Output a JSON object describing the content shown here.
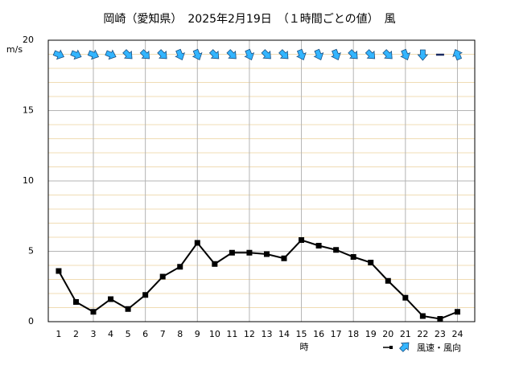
{
  "chart_data": {
    "type": "line",
    "title": "岡崎（愛知県）　2025年2月19日　（１時間ごとの値）　風",
    "y_label": "m/s",
    "x_label": "時",
    "legend": "風速・風向",
    "x": [
      1,
      2,
      3,
      4,
      5,
      6,
      7,
      8,
      9,
      10,
      11,
      12,
      13,
      14,
      15,
      16,
      17,
      18,
      19,
      20,
      21,
      22,
      23,
      24
    ],
    "series": [
      {
        "name": "風速",
        "color": "#000000",
        "values": [
          3.6,
          1.4,
          0.7,
          1.6,
          0.9,
          1.9,
          3.2,
          3.9,
          5.6,
          4.1,
          4.9,
          4.9,
          4.8,
          4.5,
          5.8,
          5.4,
          5.1,
          4.6,
          4.2,
          2.9,
          1.7,
          0.4,
          0.2,
          0.7
        ]
      }
    ],
    "directions": [
      292.5,
      292.5,
      292.5,
      292.5,
      315,
      315,
      315,
      337.5,
      337.5,
      315,
      315,
      337.5,
      315,
      315,
      337.5,
      337.5,
      337.5,
      315,
      315,
      315,
      337.5,
      0,
      null,
      157.5
    ],
    "arrow_color": "#33b5ff",
    "xlim": [
      0.4,
      25
    ],
    "xticks": [
      1,
      2,
      3,
      4,
      5,
      6,
      7,
      8,
      9,
      10,
      11,
      12,
      13,
      14,
      15,
      16,
      17,
      18,
      19,
      20,
      21,
      22,
      23,
      24
    ],
    "ylim": [
      0,
      20
    ],
    "yticks": [
      0,
      5,
      10,
      15,
      20
    ],
    "grid": true
  }
}
